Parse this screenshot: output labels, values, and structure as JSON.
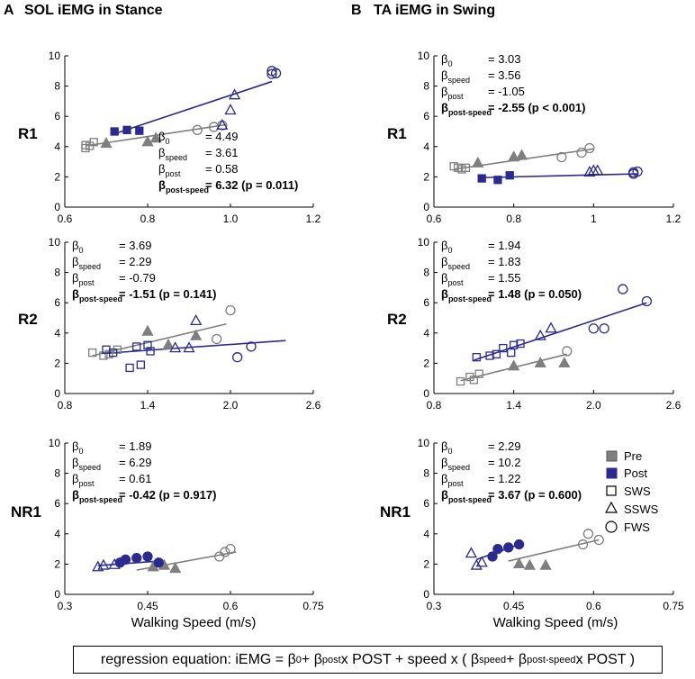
{
  "figure": {
    "columns": [
      {
        "letter": "A",
        "title": "SOL iEMG in Stance"
      },
      {
        "letter": "B",
        "title": "TA iEMG in Swing"
      }
    ],
    "rows": [
      "R1",
      "R2",
      "NR1"
    ],
    "xlabel": "Walking Speed (m/s)",
    "legend": {
      "colors": [
        {
          "label": "Pre",
          "color": "#7f7f7f"
        },
        {
          "label": "Post",
          "color": "#2b2a8f"
        }
      ],
      "markers": [
        {
          "label": "SWS",
          "shape": "square"
        },
        {
          "label": "SSWS",
          "shape": "triangle"
        },
        {
          "label": "FWS",
          "shape": "circle"
        }
      ]
    },
    "equation": {
      "t1": "regression equation: iEMG = β",
      "s1": "0",
      "t2": " + β",
      "s2": "post",
      "t3": " x POST + speed x ( β",
      "s3": "speed",
      "t4": " + β",
      "s4": "post-speed",
      "t5": " x POST )"
    }
  },
  "chart_data": [
    {
      "id": "A-R1",
      "type": "scatter",
      "title": "SOL iEMG in Stance",
      "row": "R1",
      "xlim": [
        0.6,
        1.2
      ],
      "ylim": [
        0,
        10
      ],
      "xticks": [
        0.6,
        0.8,
        1.0,
        1.2
      ],
      "xticklabels": [
        "0.6",
        "0.8",
        "1.0",
        "1.2"
      ],
      "yticks": [
        0,
        2,
        4,
        6,
        8,
        10
      ],
      "yticklabels": [
        "0",
        "2",
        "4",
        "6",
        "8",
        "10"
      ],
      "coef_pos": "lower-right",
      "coef": {
        "b0": "4.49",
        "speed": "3.61",
        "post": "0.58",
        "ps": "6.32 (p = 0.011)"
      },
      "series": [
        {
          "name": "Pre",
          "shape": "square",
          "points": [
            [
              0.65,
              4.1
            ],
            [
              0.65,
              3.9
            ],
            [
              0.66,
              4.05
            ],
            [
              0.67,
              4.3
            ]
          ]
        },
        {
          "name": "Pre",
          "shape": "triangle",
          "points": [
            [
              0.7,
              4.2
            ],
            [
              0.8,
              4.3
            ],
            [
              0.82,
              4.55
            ]
          ]
        },
        {
          "name": "Pre",
          "shape": "circle",
          "points": [
            [
              0.92,
              5.1
            ],
            [
              0.96,
              5.3
            ],
            [
              0.98,
              5.4
            ]
          ]
        },
        {
          "name": "Post",
          "shape": "square",
          "points": [
            [
              0.72,
              5.0
            ],
            [
              0.75,
              5.1
            ],
            [
              0.78,
              5.05
            ]
          ]
        },
        {
          "name": "Post",
          "shape": "triangle",
          "points": [
            [
              0.98,
              5.4
            ],
            [
              1.0,
              6.4
            ],
            [
              1.01,
              7.4
            ]
          ]
        },
        {
          "name": "Post",
          "shape": "circle",
          "points": [
            [
              1.1,
              9.0
            ],
            [
              1.1,
              8.8
            ],
            [
              1.11,
              8.85
            ]
          ]
        }
      ],
      "fits": [
        {
          "name": "Pre",
          "x": [
            0.65,
            0.99
          ],
          "y": [
            4.05,
            5.45
          ]
        },
        {
          "name": "Post",
          "x": [
            0.72,
            1.1
          ],
          "y": [
            4.85,
            8.3
          ]
        }
      ]
    },
    {
      "id": "B-R1",
      "type": "scatter",
      "title": "TA iEMG in Swing",
      "row": "R1",
      "xlim": [
        0.6,
        1.2
      ],
      "ylim": [
        0,
        10
      ],
      "xticks": [
        0.6,
        0.8,
        1.0,
        1.2
      ],
      "xticklabels": [
        "0.6",
        "0.8",
        "1",
        "1.2"
      ],
      "yticks": [
        0,
        2,
        4,
        6,
        8,
        10
      ],
      "yticklabels": [
        "0",
        "2",
        "4",
        "6",
        "8",
        "10"
      ],
      "coef_pos": "upper-left",
      "coef": {
        "b0": "3.03",
        "speed": "3.56",
        "post": "-1.05",
        "ps": "-2.55 (p < 0.001)"
      },
      "series": [
        {
          "name": "Pre",
          "shape": "square",
          "points": [
            [
              0.65,
              2.7
            ],
            [
              0.66,
              2.6
            ],
            [
              0.67,
              2.5
            ],
            [
              0.68,
              2.6
            ]
          ]
        },
        {
          "name": "Pre",
          "shape": "triangle",
          "points": [
            [
              0.71,
              2.9
            ],
            [
              0.8,
              3.3
            ],
            [
              0.82,
              3.4
            ]
          ]
        },
        {
          "name": "Pre",
          "shape": "circle",
          "points": [
            [
              0.92,
              3.3
            ],
            [
              0.97,
              3.6
            ],
            [
              0.99,
              3.9
            ]
          ]
        },
        {
          "name": "Post",
          "shape": "square",
          "points": [
            [
              0.72,
              1.9
            ],
            [
              0.76,
              1.8
            ],
            [
              0.79,
              2.1
            ]
          ]
        },
        {
          "name": "Post",
          "shape": "triangle",
          "points": [
            [
              0.99,
              2.3
            ],
            [
              1.0,
              2.4
            ],
            [
              1.01,
              2.4
            ]
          ]
        },
        {
          "name": "Post",
          "shape": "circle",
          "points": [
            [
              1.1,
              2.2
            ],
            [
              1.1,
              2.3
            ],
            [
              1.11,
              2.35
            ]
          ]
        }
      ],
      "fits": [
        {
          "name": "Pre",
          "x": [
            0.65,
            1.0
          ],
          "y": [
            2.5,
            3.85
          ]
        },
        {
          "name": "Post",
          "x": [
            0.72,
            1.11
          ],
          "y": [
            1.95,
            2.2
          ]
        }
      ]
    },
    {
      "id": "A-R2",
      "type": "scatter",
      "title": "SOL iEMG in Stance",
      "row": "R2",
      "xlim": [
        0.8,
        2.6
      ],
      "ylim": [
        0,
        10
      ],
      "xticks": [
        0.8,
        1.4,
        2.0,
        2.6
      ],
      "xticklabels": [
        "0.8",
        "1.4",
        "2.0",
        "2.6"
      ],
      "yticks": [
        0,
        2,
        4,
        6,
        8,
        10
      ],
      "yticklabels": [
        "0",
        "2",
        "4",
        "6",
        "8",
        "10"
      ],
      "coef_pos": "upper-left",
      "coef": {
        "b0": "3.69",
        "speed": "2.29",
        "post": "-0.79",
        "ps": "-1.51 (p = 0.141)"
      },
      "series": [
        {
          "name": "Pre",
          "shape": "square",
          "points": [
            [
              1.0,
              2.7
            ],
            [
              1.08,
              2.5
            ],
            [
              1.12,
              2.6
            ],
            [
              1.18,
              2.9
            ]
          ]
        },
        {
          "name": "Pre",
          "shape": "triangle",
          "points": [
            [
              1.4,
              4.1
            ],
            [
              1.55,
              3.2
            ],
            [
              1.75,
              3.8
            ]
          ]
        },
        {
          "name": "Pre",
          "shape": "circle",
          "points": [
            [
              1.9,
              3.6
            ],
            [
              2.0,
              5.5
            ]
          ]
        },
        {
          "name": "Post",
          "shape": "square",
          "points": [
            [
              1.1,
              2.9
            ],
            [
              1.15,
              2.7
            ],
            [
              1.27,
              1.7
            ],
            [
              1.32,
              3.1
            ],
            [
              1.35,
              1.9
            ],
            [
              1.4,
              3.2
            ],
            [
              1.42,
              2.8
            ]
          ]
        },
        {
          "name": "Post",
          "shape": "triangle",
          "points": [
            [
              1.6,
              3.0
            ],
            [
              1.7,
              3.0
            ],
            [
              1.75,
              4.8
            ]
          ]
        },
        {
          "name": "Post",
          "shape": "circle",
          "points": [
            [
              2.05,
              2.4
            ],
            [
              2.15,
              3.1
            ]
          ]
        }
      ],
      "fits": [
        {
          "name": "Pre",
          "x": [
            1.0,
            1.97
          ],
          "y": [
            2.5,
            4.6
          ]
        },
        {
          "name": "Post",
          "x": [
            1.08,
            2.4
          ],
          "y": [
            2.65,
            3.5
          ]
        }
      ]
    },
    {
      "id": "B-R2",
      "type": "scatter",
      "title": "TA iEMG in Swing",
      "row": "R2",
      "xlim": [
        0.8,
        2.6
      ],
      "ylim": [
        0,
        10
      ],
      "xticks": [
        0.8,
        1.4,
        2.0,
        2.6
      ],
      "xticklabels": [
        "0.8",
        "1.4",
        "2.0",
        "2.6"
      ],
      "yticks": [
        0,
        2,
        4,
        6,
        8,
        10
      ],
      "yticklabels": [
        "0",
        "2",
        "4",
        "6",
        "8",
        "10"
      ],
      "coef_pos": "upper-left",
      "coef": {
        "b0": "1.94",
        "speed": "1.83",
        "post": "1.55",
        "ps": "1.48 (p = 0.050)"
      },
      "series": [
        {
          "name": "Pre",
          "shape": "square",
          "points": [
            [
              1.0,
              0.8
            ],
            [
              1.07,
              1.1
            ],
            [
              1.1,
              0.9
            ],
            [
              1.14,
              1.3
            ]
          ]
        },
        {
          "name": "Pre",
          "shape": "triangle",
          "points": [
            [
              1.4,
              1.8
            ],
            [
              1.6,
              2.0
            ],
            [
              1.78,
              2.0
            ]
          ]
        },
        {
          "name": "Pre",
          "shape": "circle",
          "points": [
            [
              1.8,
              2.8
            ]
          ]
        },
        {
          "name": "Post",
          "shape": "square",
          "points": [
            [
              1.12,
              2.4
            ],
            [
              1.22,
              2.5
            ],
            [
              1.27,
              2.6
            ],
            [
              1.32,
              3.0
            ],
            [
              1.38,
              2.7
            ],
            [
              1.4,
              3.2
            ],
            [
              1.45,
              3.3
            ]
          ]
        },
        {
          "name": "Post",
          "shape": "triangle",
          "points": [
            [
              1.6,
              3.8
            ],
            [
              1.68,
              4.3
            ]
          ]
        },
        {
          "name": "Post",
          "shape": "circle",
          "points": [
            [
              2.0,
              4.3
            ],
            [
              2.08,
              4.3
            ],
            [
              2.22,
              6.9
            ],
            [
              2.4,
              6.1
            ]
          ]
        }
      ],
      "fits": [
        {
          "name": "Pre",
          "x": [
            1.0,
            1.8
          ],
          "y": [
            0.85,
            2.6
          ]
        },
        {
          "name": "Post",
          "x": [
            1.1,
            2.4
          ],
          "y": [
            2.2,
            6.0
          ]
        }
      ]
    },
    {
      "id": "A-NR1",
      "type": "scatter",
      "title": "SOL iEMG in Stance",
      "row": "NR1",
      "xlim": [
        0.3,
        0.75
      ],
      "ylim": [
        0,
        10
      ],
      "xticks": [
        0.3,
        0.45,
        0.6,
        0.75
      ],
      "xticklabels": [
        "0.3",
        "0.45",
        "0.6",
        "0.75"
      ],
      "yticks": [
        0,
        2,
        4,
        6,
        8,
        10
      ],
      "yticklabels": [
        "0",
        "2",
        "4",
        "6",
        "8",
        "10"
      ],
      "coef_pos": "upper-left",
      "coef": {
        "b0": "1.89",
        "speed": "6.29",
        "post": "0.61",
        "ps": "-0.42 (p = 0.917)"
      },
      "series": [
        {
          "name": "Pre",
          "shape": "triangle",
          "points": [
            [
              0.46,
              1.8
            ],
            [
              0.48,
              1.9
            ],
            [
              0.5,
              1.7
            ]
          ]
        },
        {
          "name": "Pre",
          "shape": "circle",
          "points": [
            [
              0.58,
              2.5
            ],
            [
              0.59,
              2.8
            ],
            [
              0.6,
              3.0
            ]
          ]
        },
        {
          "name": "Post",
          "shape": "triangle",
          "points": [
            [
              0.36,
              1.8
            ],
            [
              0.37,
              1.9
            ],
            [
              0.39,
              1.95
            ]
          ]
        },
        {
          "name": "Post",
          "shape": "circle",
          "points": [
            [
              0.4,
              2.1
            ],
            [
              0.41,
              2.3
            ],
            [
              0.43,
              2.4
            ],
            [
              0.45,
              2.5
            ],
            [
              0.47,
              2.1
            ]
          ]
        }
      ],
      "fits": [
        {
          "name": "Pre",
          "x": [
            0.43,
            0.61
          ],
          "y": [
            1.6,
            2.8
          ]
        },
        {
          "name": "Post",
          "x": [
            0.36,
            0.47
          ],
          "y": [
            1.9,
            2.2
          ]
        }
      ]
    },
    {
      "id": "B-NR1",
      "type": "scatter",
      "title": "TA iEMG in Swing",
      "row": "NR1",
      "xlim": [
        0.3,
        0.75
      ],
      "ylim": [
        0,
        10
      ],
      "xticks": [
        0.3,
        0.45,
        0.6,
        0.75
      ],
      "xticklabels": [
        "0.3",
        "0.45",
        "0.6",
        "0.75"
      ],
      "yticks": [
        0,
        2,
        4,
        6,
        8,
        10
      ],
      "yticklabels": [
        "0",
        "2",
        "4",
        "6",
        "8",
        "10"
      ],
      "coef_pos": "upper-left",
      "coef": {
        "b0": "2.29",
        "speed": "10.2",
        "post": "1.22",
        "ps": "3.67 (p = 0.600)"
      },
      "series": [
        {
          "name": "Pre",
          "shape": "triangle",
          "points": [
            [
              0.46,
              2.0
            ],
            [
              0.48,
              1.9
            ],
            [
              0.51,
              1.9
            ]
          ]
        },
        {
          "name": "Pre",
          "shape": "circle",
          "points": [
            [
              0.58,
              3.3
            ],
            [
              0.59,
              4.0
            ],
            [
              0.61,
              3.6
            ]
          ]
        },
        {
          "name": "Post",
          "shape": "triangle",
          "points": [
            [
              0.37,
              2.7
            ],
            [
              0.38,
              1.9
            ],
            [
              0.39,
              2.1
            ]
          ]
        },
        {
          "name": "Post",
          "shape": "circle",
          "points": [
            [
              0.41,
              2.5
            ],
            [
              0.42,
              3.0
            ],
            [
              0.44,
              3.1
            ],
            [
              0.46,
              3.3
            ]
          ]
        }
      ],
      "fits": [
        {
          "name": "Pre",
          "x": [
            0.44,
            0.61
          ],
          "y": [
            2.2,
            3.6
          ]
        },
        {
          "name": "Post",
          "x": [
            0.38,
            0.46
          ],
          "y": [
            2.3,
            3.3
          ]
        }
      ]
    }
  ]
}
